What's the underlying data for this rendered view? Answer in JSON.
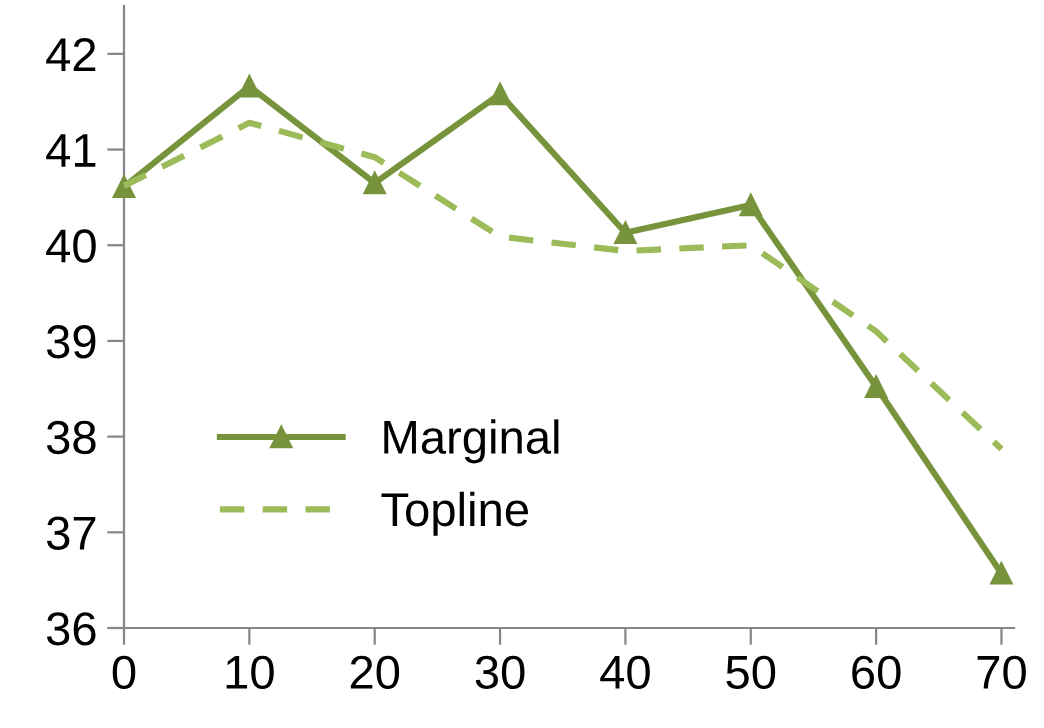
{
  "chart_data": {
    "type": "line",
    "x": [
      0,
      10,
      20,
      30,
      40,
      50,
      60,
      70
    ],
    "series": [
      {
        "name": "Marginal",
        "color": "#77933c",
        "values": [
          40.61,
          41.66,
          40.65,
          41.58,
          40.13,
          40.42,
          38.52,
          36.57
        ],
        "marker": "triangle",
        "line_style": "solid"
      },
      {
        "name": "Topline",
        "color": "#9bbb59",
        "values": [
          40.62,
          41.28,
          40.92,
          40.09,
          39.94,
          40.0,
          39.1,
          37.87
        ],
        "marker": "none",
        "line_style": "dashed"
      }
    ],
    "xlim": [
      0,
      71
    ],
    "xticks": [
      0,
      10,
      20,
      30,
      40,
      50,
      60,
      70
    ],
    "ylim": [
      36,
      42.5
    ],
    "yticks": [
      36,
      37,
      38,
      39,
      40,
      41,
      42
    ],
    "grid": false,
    "legend": "lower left"
  }
}
